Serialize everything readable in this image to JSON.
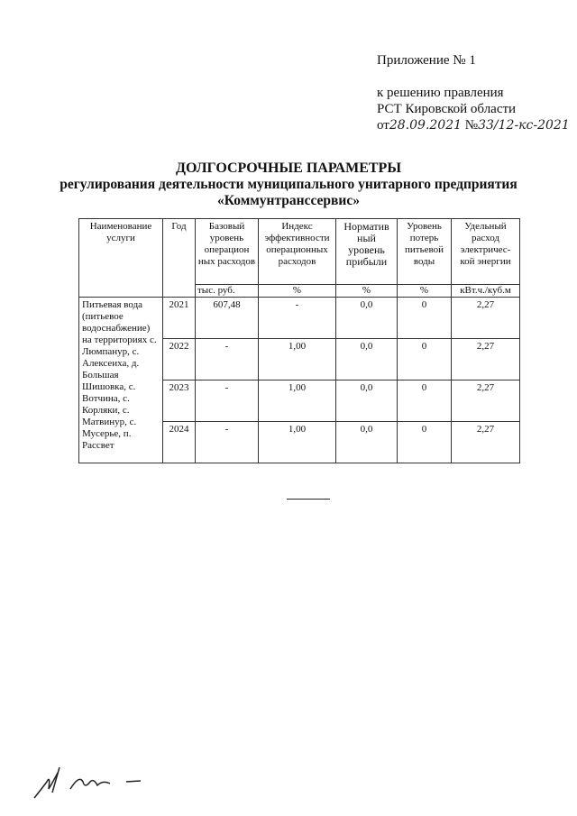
{
  "header": {
    "appendix": "Приложение  № 1",
    "line1": "к решению правления",
    "line2": "РСТ Кировской области",
    "date_prefix": "от",
    "date": "28.09.2021",
    "number_prefix": "№",
    "number": "33/12-кс-2021"
  },
  "title": {
    "line1": "ДОЛГОСРОЧНЫЕ ПАРАМЕТРЫ",
    "line2": "регулирования деятельности муниципального унитарного предприятия",
    "line3": "«Коммунтранссервис»"
  },
  "table": {
    "columns": [
      "Наименование услуги",
      "Год",
      "Базовый уровень операцион ных расходов",
      "Индекс эффективности операционных расходов",
      "Норматив ный уровень прибыли",
      "Уровень потерь питьевой воды",
      "Удельный расход электричес-кой энергии"
    ],
    "units": [
      "",
      "",
      "тыс. руб.",
      "%",
      "%",
      "%",
      "кВт.ч./куб.м"
    ],
    "service_name": "Питьевая вода (питьевое водоснабжение) на территориях с. Люмпанур, с. Алексеиха, д. Большая Шишовка, с. Вотчина, с. Корляки, с. Матвинур, с. Мусерье, п. Рассвет",
    "rows": [
      {
        "year": "2021",
        "base": "607,48",
        "index": "-",
        "profit": "0,0",
        "loss": "0",
        "energy": "2,27"
      },
      {
        "year": "2022",
        "base": "-",
        "index": "1,00",
        "profit": "0,0",
        "loss": "0",
        "energy": "2,27"
      },
      {
        "year": "2023",
        "base": "-",
        "index": "1,00",
        "profit": "0,0",
        "loss": "0",
        "energy": "2,27"
      },
      {
        "year": "2024",
        "base": "-",
        "index": "1,00",
        "profit": "0,0",
        "loss": "0",
        "energy": "2,27"
      }
    ]
  }
}
